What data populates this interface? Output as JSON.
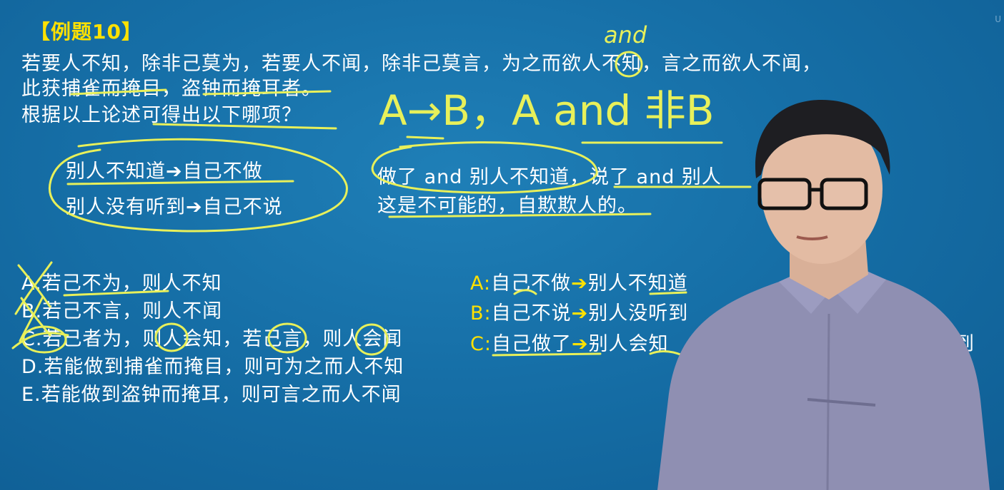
{
  "title": "【例题10】",
  "question": {
    "line1": "若要人不知，除非己莫为，若要人不闻，除非己莫言，为之而欲人不知，言之而欲人不闻，",
    "line2": "此获捕雀而掩目，盗钟而掩耳者。",
    "line3": "根据以上论述可得出以下哪项？"
  },
  "handwriting": {
    "and_note": "and",
    "formula": "A→B，A and 非B"
  },
  "analysis": {
    "left1_a": "别人不知道",
    "left1_b": "自己不做",
    "left2_a": "别人没有听到",
    "left2_b": "自己不说",
    "right1": "做了 and 别人不知道，说了 and 别人",
    "right2": "这是不可能的，自欺欺人的。"
  },
  "options": [
    {
      "label": "A.",
      "text": "若己不为，则人不知"
    },
    {
      "label": "B.",
      "text": "若己不言，则人不闻"
    },
    {
      "label": "C.",
      "text": "若己者为，则人会知，若己言，则人会闻"
    },
    {
      "label": "D.",
      "text": "若能做到捕雀而掩目，则可为之而人不知"
    },
    {
      "label": "E.",
      "text": "若能做到盗钟而掩耳，则可言之而人不闻"
    }
  ],
  "translations": [
    {
      "label": "A:",
      "a": "自己不做",
      "b": "别人不知道"
    },
    {
      "label": "B:",
      "a": "自己不说",
      "b": "别人没听到"
    },
    {
      "label": "C:",
      "a": "自己做了",
      "b": "别人会知"
    }
  ],
  "translation_tail": "到",
  "arrow_glyph": "➔",
  "watermark": "U",
  "colors": {
    "accent": "#ffe100",
    "background": "#166fa7",
    "ink": "#e8f05a"
  }
}
